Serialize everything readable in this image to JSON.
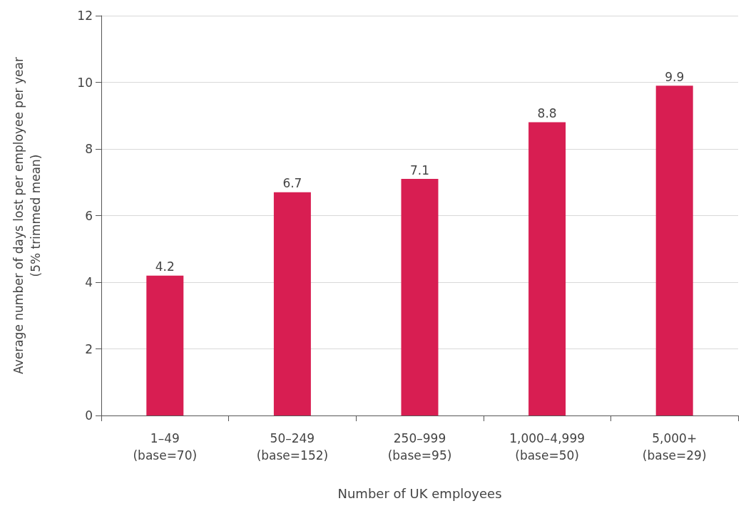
{
  "chart_data": {
    "type": "bar",
    "xlabel": "Number of UK employees",
    "ylabel": "Average number of days lost per employee per year\n(5% trimmed mean)",
    "categories": [
      "1–49\n(base=70)",
      "50–249\n(base=152)",
      "250–999\n(base=95)",
      "1,000–4,999\n(base=50)",
      "5,000+\n(base=29)"
    ],
    "values": [
      4.2,
      6.7,
      7.1,
      8.8,
      9.9
    ],
    "color": "#d81e52",
    "ylim": [
      0,
      12
    ],
    "yticks": [
      0,
      2,
      4,
      6,
      8,
      10,
      12
    ],
    "grid": "y",
    "data_labels": true
  }
}
